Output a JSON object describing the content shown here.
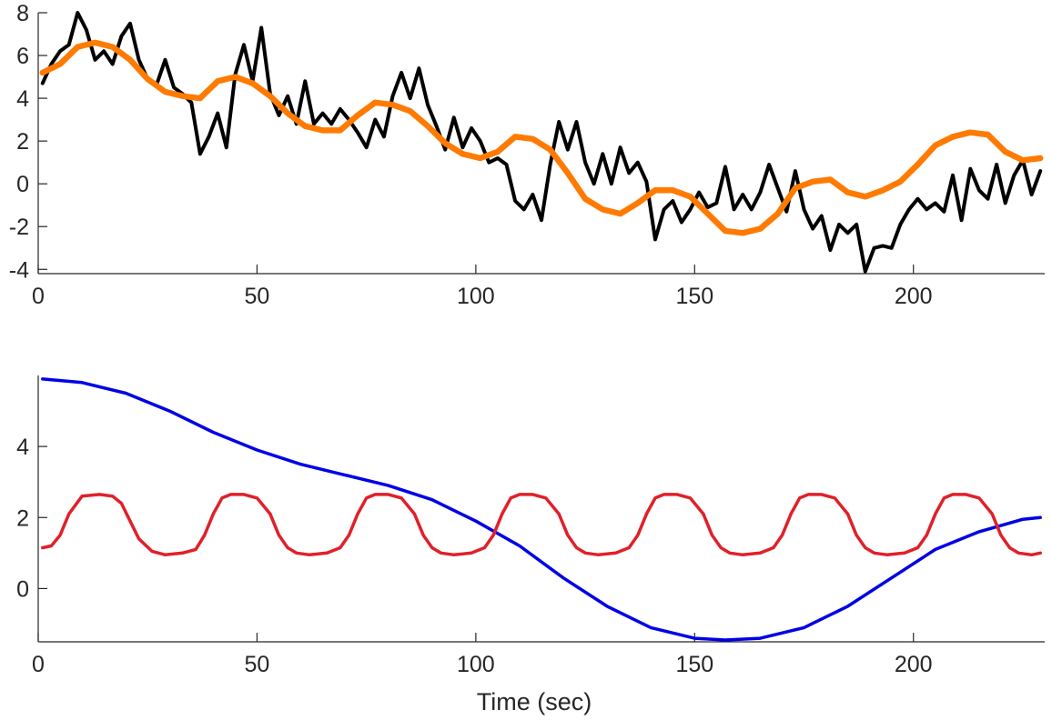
{
  "chart_data": [
    {
      "type": "line",
      "title": "",
      "xlabel": "",
      "ylabel": "",
      "xlim": [
        0,
        230
      ],
      "ylim": [
        -4.2,
        8
      ],
      "xticks": [
        0,
        50,
        100,
        150,
        200
      ],
      "yticks": [
        8,
        6,
        4,
        2,
        0,
        -2,
        -4
      ],
      "xtick_labels": [
        "0",
        "50",
        "100",
        "150",
        "200"
      ],
      "ytick_labels": [
        "8",
        "6",
        "4",
        "2",
        "0",
        "-2",
        "-4"
      ],
      "grid": false,
      "legend": "none",
      "series": [
        {
          "color": "#000000",
          "x": [
            1,
            3,
            5,
            7,
            9,
            11,
            13,
            15,
            17,
            19,
            21,
            23,
            25,
            27,
            29,
            31,
            33,
            35,
            37,
            39,
            41,
            43,
            45,
            47,
            49,
            51,
            53,
            55,
            57,
            59,
            61,
            63,
            65,
            67,
            69,
            71,
            73,
            75,
            77,
            79,
            81,
            83,
            85,
            87,
            89,
            91,
            93,
            95,
            97,
            99,
            101,
            103,
            105,
            107,
            109,
            111,
            113,
            115,
            117,
            119,
            121,
            123,
            125,
            127,
            129,
            131,
            133,
            135,
            137,
            139,
            141,
            143,
            145,
            147,
            149,
            151,
            153,
            155,
            157,
            159,
            161,
            163,
            165,
            167,
            169,
            171,
            173,
            175,
            177,
            179,
            181,
            183,
            185,
            187,
            189,
            191,
            193,
            195,
            197,
            199,
            201,
            203,
            205,
            207,
            209,
            211,
            213,
            215,
            217,
            219,
            221,
            223,
            225,
            227,
            229
          ],
          "values": [
            4.7,
            5.6,
            6.2,
            6.5,
            8.0,
            7.2,
            5.8,
            6.2,
            5.6,
            6.9,
            7.5,
            5.8,
            4.9,
            4.6,
            5.8,
            4.5,
            4.2,
            3.8,
            1.4,
            2.2,
            3.3,
            1.7,
            5.1,
            6.5,
            4.8,
            7.3,
            4.2,
            3.2,
            4.1,
            2.8,
            4.8,
            2.8,
            3.3,
            2.8,
            3.5,
            3.0,
            2.4,
            1.7,
            3.0,
            2.2,
            4.1,
            5.2,
            4.0,
            5.4,
            3.7,
            2.7,
            1.6,
            3.1,
            1.7,
            2.6,
            2.0,
            1.0,
            1.2,
            0.9,
            -0.8,
            -1.2,
            -0.5,
            -1.7,
            0.9,
            2.9,
            1.6,
            2.9,
            1.0,
            0.0,
            1.4,
            0.0,
            1.7,
            0.5,
            1.0,
            0.1,
            -2.6,
            -1.2,
            -0.8,
            -1.8,
            -1.2,
            -0.4,
            -1.1,
            -0.9,
            0.8,
            -1.2,
            -0.5,
            -1.2,
            -0.4,
            0.9,
            -0.2,
            -1.3,
            0.6,
            -1.2,
            -2.1,
            -1.5,
            -3.1,
            -1.9,
            -2.3,
            -1.9,
            -4.1,
            -3.0,
            -2.9,
            -3.0,
            -1.9,
            -1.2,
            -0.7,
            -1.2,
            -0.9,
            -1.3,
            0.4,
            -1.7,
            0.7,
            -0.3,
            -0.7,
            0.9,
            -0.9,
            0.4,
            1.1,
            -0.5,
            0.6
          ]
        },
        {
          "color": "#ff7a00",
          "x": [
            1,
            5,
            9,
            13,
            17,
            21,
            25,
            29,
            33,
            37,
            41,
            45,
            49,
            53,
            57,
            61,
            65,
            69,
            73,
            77,
            81,
            85,
            89,
            93,
            97,
            101,
            105,
            109,
            113,
            117,
            121,
            125,
            129,
            133,
            137,
            141,
            145,
            149,
            153,
            157,
            161,
            165,
            169,
            173,
            177,
            181,
            185,
            189,
            193,
            197,
            201,
            205,
            209,
            213,
            217,
            221,
            225,
            229
          ],
          "values": [
            5.2,
            5.6,
            6.4,
            6.6,
            6.4,
            5.8,
            4.9,
            4.3,
            4.1,
            4.0,
            4.8,
            5.0,
            4.7,
            4.1,
            3.3,
            2.7,
            2.5,
            2.5,
            3.2,
            3.8,
            3.7,
            3.4,
            2.7,
            1.9,
            1.4,
            1.2,
            1.5,
            2.2,
            2.1,
            1.6,
            0.5,
            -0.7,
            -1.2,
            -1.4,
            -0.9,
            -0.3,
            -0.3,
            -0.6,
            -1.4,
            -2.2,
            -2.3,
            -2.1,
            -1.4,
            -0.2,
            0.1,
            0.2,
            -0.4,
            -0.6,
            -0.3,
            0.1,
            0.9,
            1.8,
            2.2,
            2.4,
            2.3,
            1.5,
            1.1,
            1.2
          ]
        }
      ]
    },
    {
      "type": "line",
      "title": "",
      "xlabel": "Time (sec)",
      "ylabel": "",
      "xlim": [
        0,
        230
      ],
      "ylim": [
        -1.5,
        6
      ],
      "xticks": [
        0,
        50,
        100,
        150,
        200
      ],
      "yticks": [
        4,
        2,
        0
      ],
      "xtick_labels": [
        "0",
        "50",
        "100",
        "150",
        "200"
      ],
      "ytick_labels": [
        "4",
        "2",
        "0"
      ],
      "grid": false,
      "legend": "none",
      "series": [
        {
          "color": "#0000e6",
          "x": [
            1,
            10,
            20,
            30,
            40,
            50,
            60,
            70,
            80,
            90,
            100,
            110,
            120,
            130,
            140,
            150,
            157,
            165,
            175,
            185,
            195,
            205,
            215,
            225,
            229
          ],
          "values": [
            5.9,
            5.8,
            5.5,
            5.0,
            4.4,
            3.9,
            3.5,
            3.2,
            2.9,
            2.5,
            1.9,
            1.2,
            0.3,
            -0.5,
            -1.1,
            -1.4,
            -1.45,
            -1.4,
            -1.1,
            -0.5,
            0.3,
            1.1,
            1.6,
            1.95,
            2.0
          ]
        },
        {
          "color": "#e0202a",
          "x": [
            1,
            3,
            5,
            7,
            10,
            14,
            17,
            19,
            21,
            23,
            26,
            29,
            33,
            36,
            38,
            40,
            42,
            44,
            47,
            50,
            53,
            55,
            57,
            59,
            62,
            66,
            69,
            71,
            73,
            75,
            77,
            80,
            83,
            86,
            88,
            90,
            92,
            95,
            99,
            102,
            104,
            106,
            108,
            110,
            113,
            116,
            119,
            121,
            123,
            125,
            128,
            132,
            135,
            137,
            139,
            141,
            143,
            146,
            149,
            152,
            154,
            156,
            158,
            161,
            165,
            168,
            170,
            172,
            174,
            176,
            179,
            182,
            185,
            187,
            189,
            191,
            194,
            198,
            201,
            203,
            205,
            207,
            209,
            212,
            215,
            218,
            220,
            222,
            224,
            227,
            229
          ],
          "values": [
            1.15,
            1.2,
            1.5,
            2.1,
            2.6,
            2.65,
            2.6,
            2.4,
            1.9,
            1.4,
            1.05,
            0.95,
            1.0,
            1.1,
            1.5,
            2.1,
            2.55,
            2.65,
            2.65,
            2.55,
            2.1,
            1.5,
            1.15,
            1.0,
            0.95,
            1.0,
            1.15,
            1.5,
            2.1,
            2.55,
            2.65,
            2.65,
            2.55,
            2.1,
            1.5,
            1.15,
            1.0,
            0.95,
            1.0,
            1.15,
            1.5,
            2.1,
            2.55,
            2.65,
            2.65,
            2.55,
            2.1,
            1.5,
            1.15,
            1.0,
            0.95,
            1.0,
            1.15,
            1.5,
            2.1,
            2.55,
            2.65,
            2.65,
            2.55,
            2.1,
            1.5,
            1.15,
            1.0,
            0.95,
            1.0,
            1.15,
            1.5,
            2.1,
            2.55,
            2.65,
            2.65,
            2.55,
            2.1,
            1.5,
            1.15,
            1.0,
            0.95,
            1.0,
            1.15,
            1.5,
            2.1,
            2.55,
            2.65,
            2.65,
            2.55,
            2.1,
            1.5,
            1.15,
            1.0,
            0.95,
            1.0
          ]
        }
      ]
    }
  ]
}
